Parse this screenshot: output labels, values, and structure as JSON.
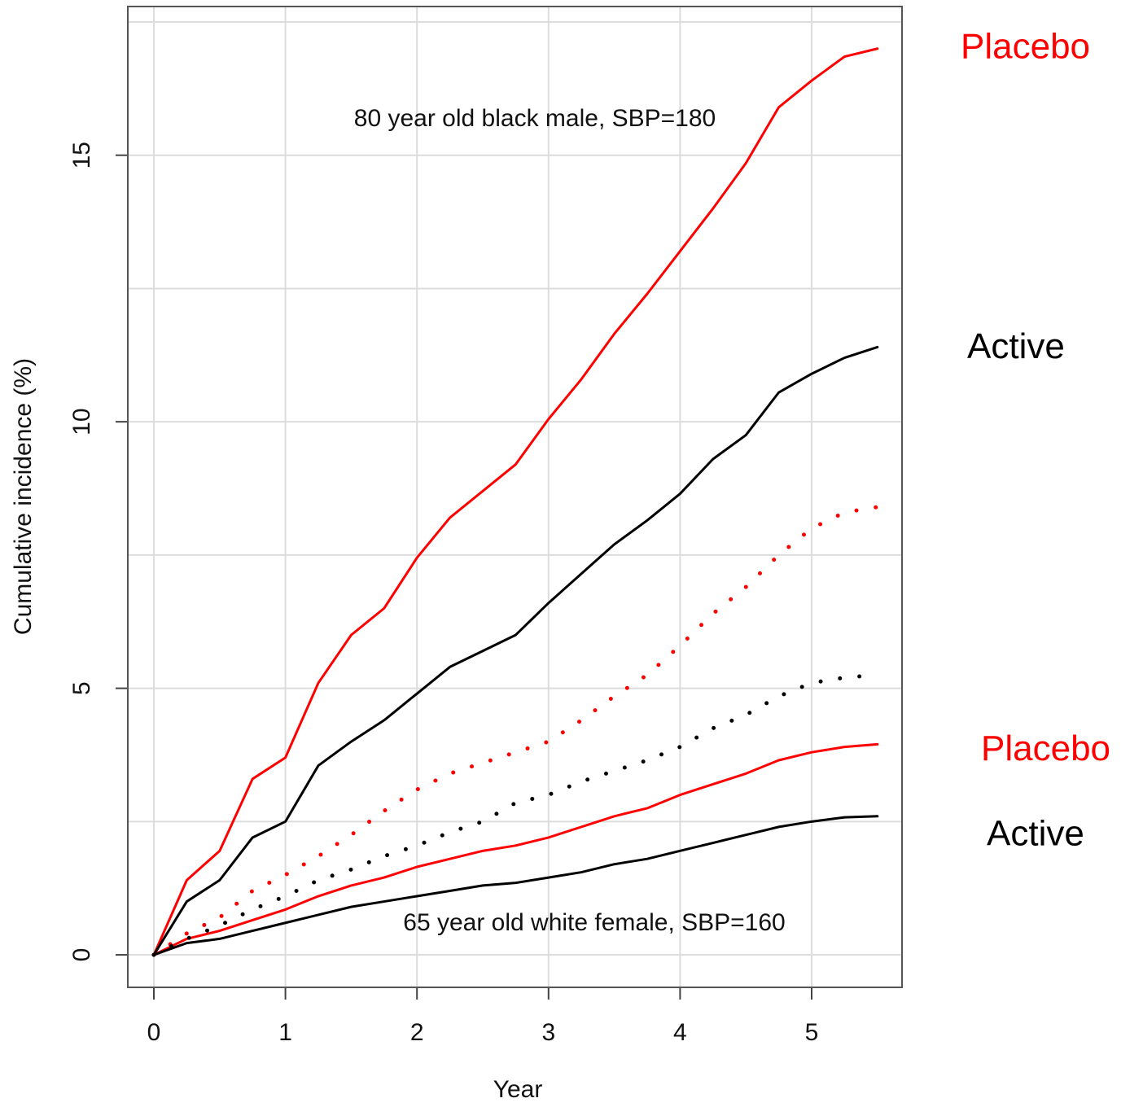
{
  "chart_data": {
    "type": "line",
    "xlabel": "Year",
    "ylabel": "Cumulative incidence (%)",
    "annotations": [
      "80 year old black male, SBP=180",
      "65 year old white female, SBP=160"
    ],
    "x": [
      0,
      0.25,
      0.5,
      0.75,
      1,
      1.25,
      1.5,
      1.75,
      2,
      2.25,
      2.5,
      2.75,
      3,
      3.25,
      3.5,
      3.75,
      4,
      4.25,
      4.5,
      4.75,
      5,
      5.25,
      5.5
    ],
    "series": [
      {
        "name": "Placebo",
        "color": "#ff0000",
        "style": "solid",
        "values": [
          0,
          1.4,
          1.95,
          3.3,
          3.7,
          5.1,
          6.0,
          6.5,
          7.45,
          8.2,
          8.7,
          9.2,
          10.05,
          10.8,
          11.65,
          12.4,
          13.2,
          14.0,
          14.85,
          15.9,
          16.4,
          16.85,
          17.0
        ]
      },
      {
        "name": "Active",
        "color": "#000000",
        "style": "solid",
        "values": [
          0,
          1.0,
          1.4,
          2.2,
          2.5,
          3.55,
          4.0,
          4.4,
          4.9,
          5.4,
          5.7,
          6.0,
          6.6,
          7.15,
          7.7,
          8.15,
          8.65,
          9.3,
          9.75,
          10.55,
          10.9,
          11.2,
          11.4
        ]
      },
      {
        "name": "Placebo",
        "color": "#ff0000",
        "style": "solid",
        "values": [
          0,
          0.3,
          0.45,
          0.65,
          0.85,
          1.1,
          1.3,
          1.45,
          1.65,
          1.8,
          1.95,
          2.05,
          2.2,
          2.4,
          2.6,
          2.75,
          3.0,
          3.2,
          3.4,
          3.65,
          3.8,
          3.9,
          3.95
        ]
      },
      {
        "name": "Active",
        "color": "#000000",
        "style": "solid",
        "values": [
          0,
          0.22,
          0.3,
          0.45,
          0.6,
          0.75,
          0.9,
          1.0,
          1.1,
          1.2,
          1.3,
          1.35,
          1.45,
          1.55,
          1.7,
          1.8,
          1.95,
          2.1,
          2.25,
          2.4,
          2.5,
          2.58,
          2.6
        ]
      },
      {
        "color": "#ff0000",
        "style": "dotted",
        "values": [
          0,
          0.4,
          0.7,
          1.2,
          1.5,
          1.85,
          2.25,
          2.7,
          3.1,
          3.4,
          3.6,
          3.8,
          4.0,
          4.4,
          4.85,
          5.25,
          5.8,
          6.4,
          6.9,
          7.5,
          8.0,
          8.3,
          8.4
        ]
      },
      {
        "color": "#000000",
        "style": "dotted",
        "values": [
          0,
          0.3,
          0.55,
          0.85,
          1.1,
          1.4,
          1.6,
          1.85,
          2.05,
          2.3,
          2.5,
          2.85,
          3.0,
          3.25,
          3.45,
          3.65,
          3.9,
          4.25,
          4.5,
          4.85,
          5.1,
          5.2,
          5.25
        ]
      }
    ],
    "xlim": [
      -0.198,
      5.687
    ],
    "ylim": [
      -0.61,
      17.79
    ],
    "xticks": [
      0,
      1,
      2,
      3,
      4,
      5
    ],
    "yticks": [
      0,
      5,
      10,
      15
    ],
    "y_minor_grid": [
      2.5,
      7.5,
      12.5,
      17.5
    ],
    "grid": true
  }
}
